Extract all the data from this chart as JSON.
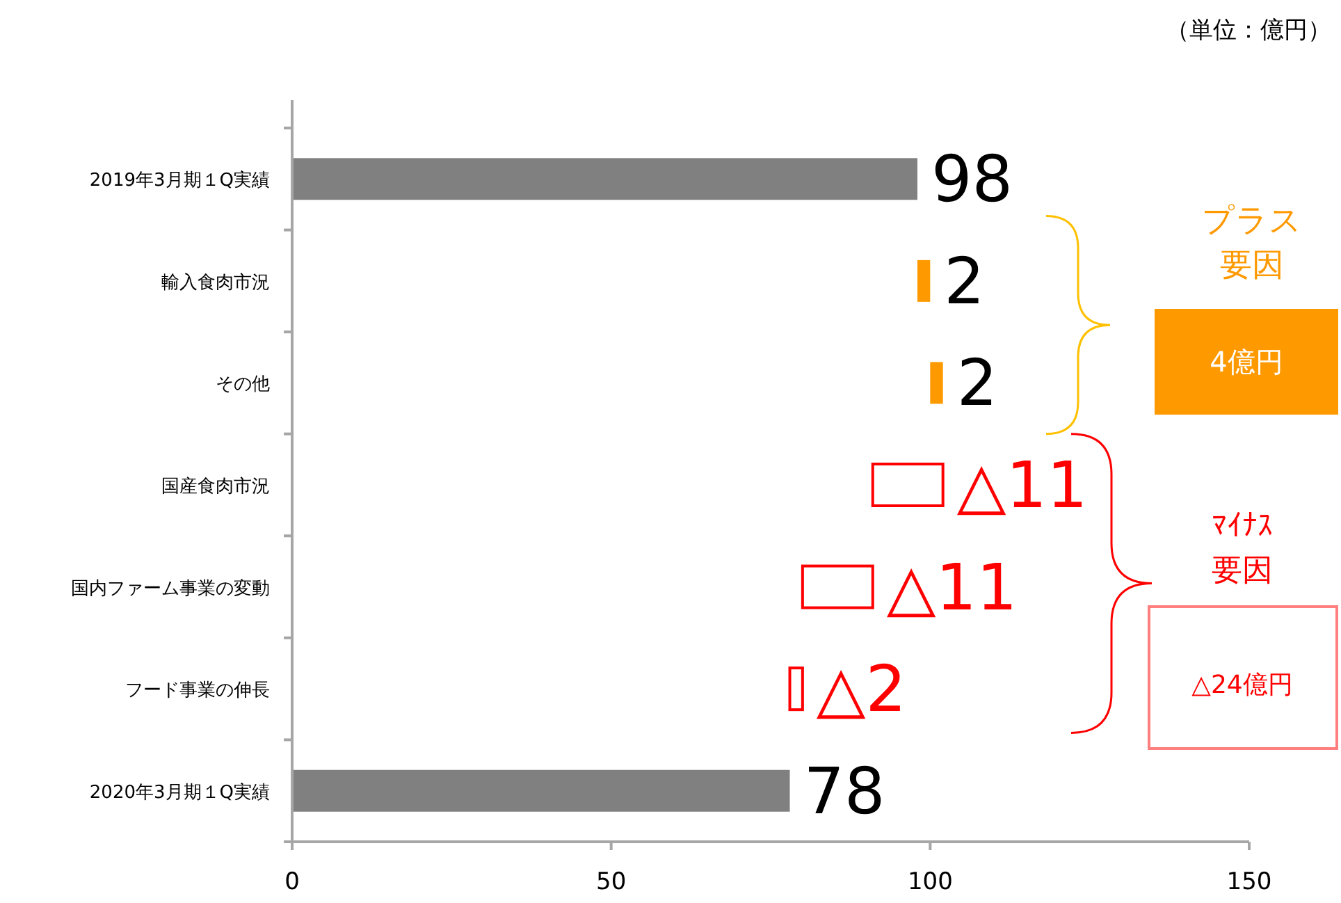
{
  "chart_data": {
    "type": "bar",
    "orientation": "horizontal",
    "categories": [
      "2019年3月期１Q実績",
      "輸入食肉市況",
      "その他",
      "国産食肉市況",
      "国内ファーム事業の変動",
      "フード事業の伸長",
      "2020年3月期１Q実績"
    ],
    "values": [
      98,
      2,
      2,
      -11,
      -11,
      -2,
      78
    ],
    "base": [
      0,
      98,
      100,
      102,
      91,
      80,
      0
    ],
    "colors": [
      "#808080",
      "#ff9900",
      "#ff9900",
      "#ff0000",
      "#ff0000",
      "#ff0000",
      "#808080"
    ],
    "value_labels": [
      "98",
      "2",
      "2",
      "△11",
      "△11",
      "△2",
      "78"
    ],
    "xlim": [
      0,
      150
    ],
    "xticks": [
      0,
      50,
      100,
      150
    ],
    "grid": false,
    "annotations": [
      "（単位：億円）",
      "プラス",
      "要因",
      "4億円",
      "ﾏｲﾅｽ",
      "要因",
      "△24億円"
    ]
  }
}
